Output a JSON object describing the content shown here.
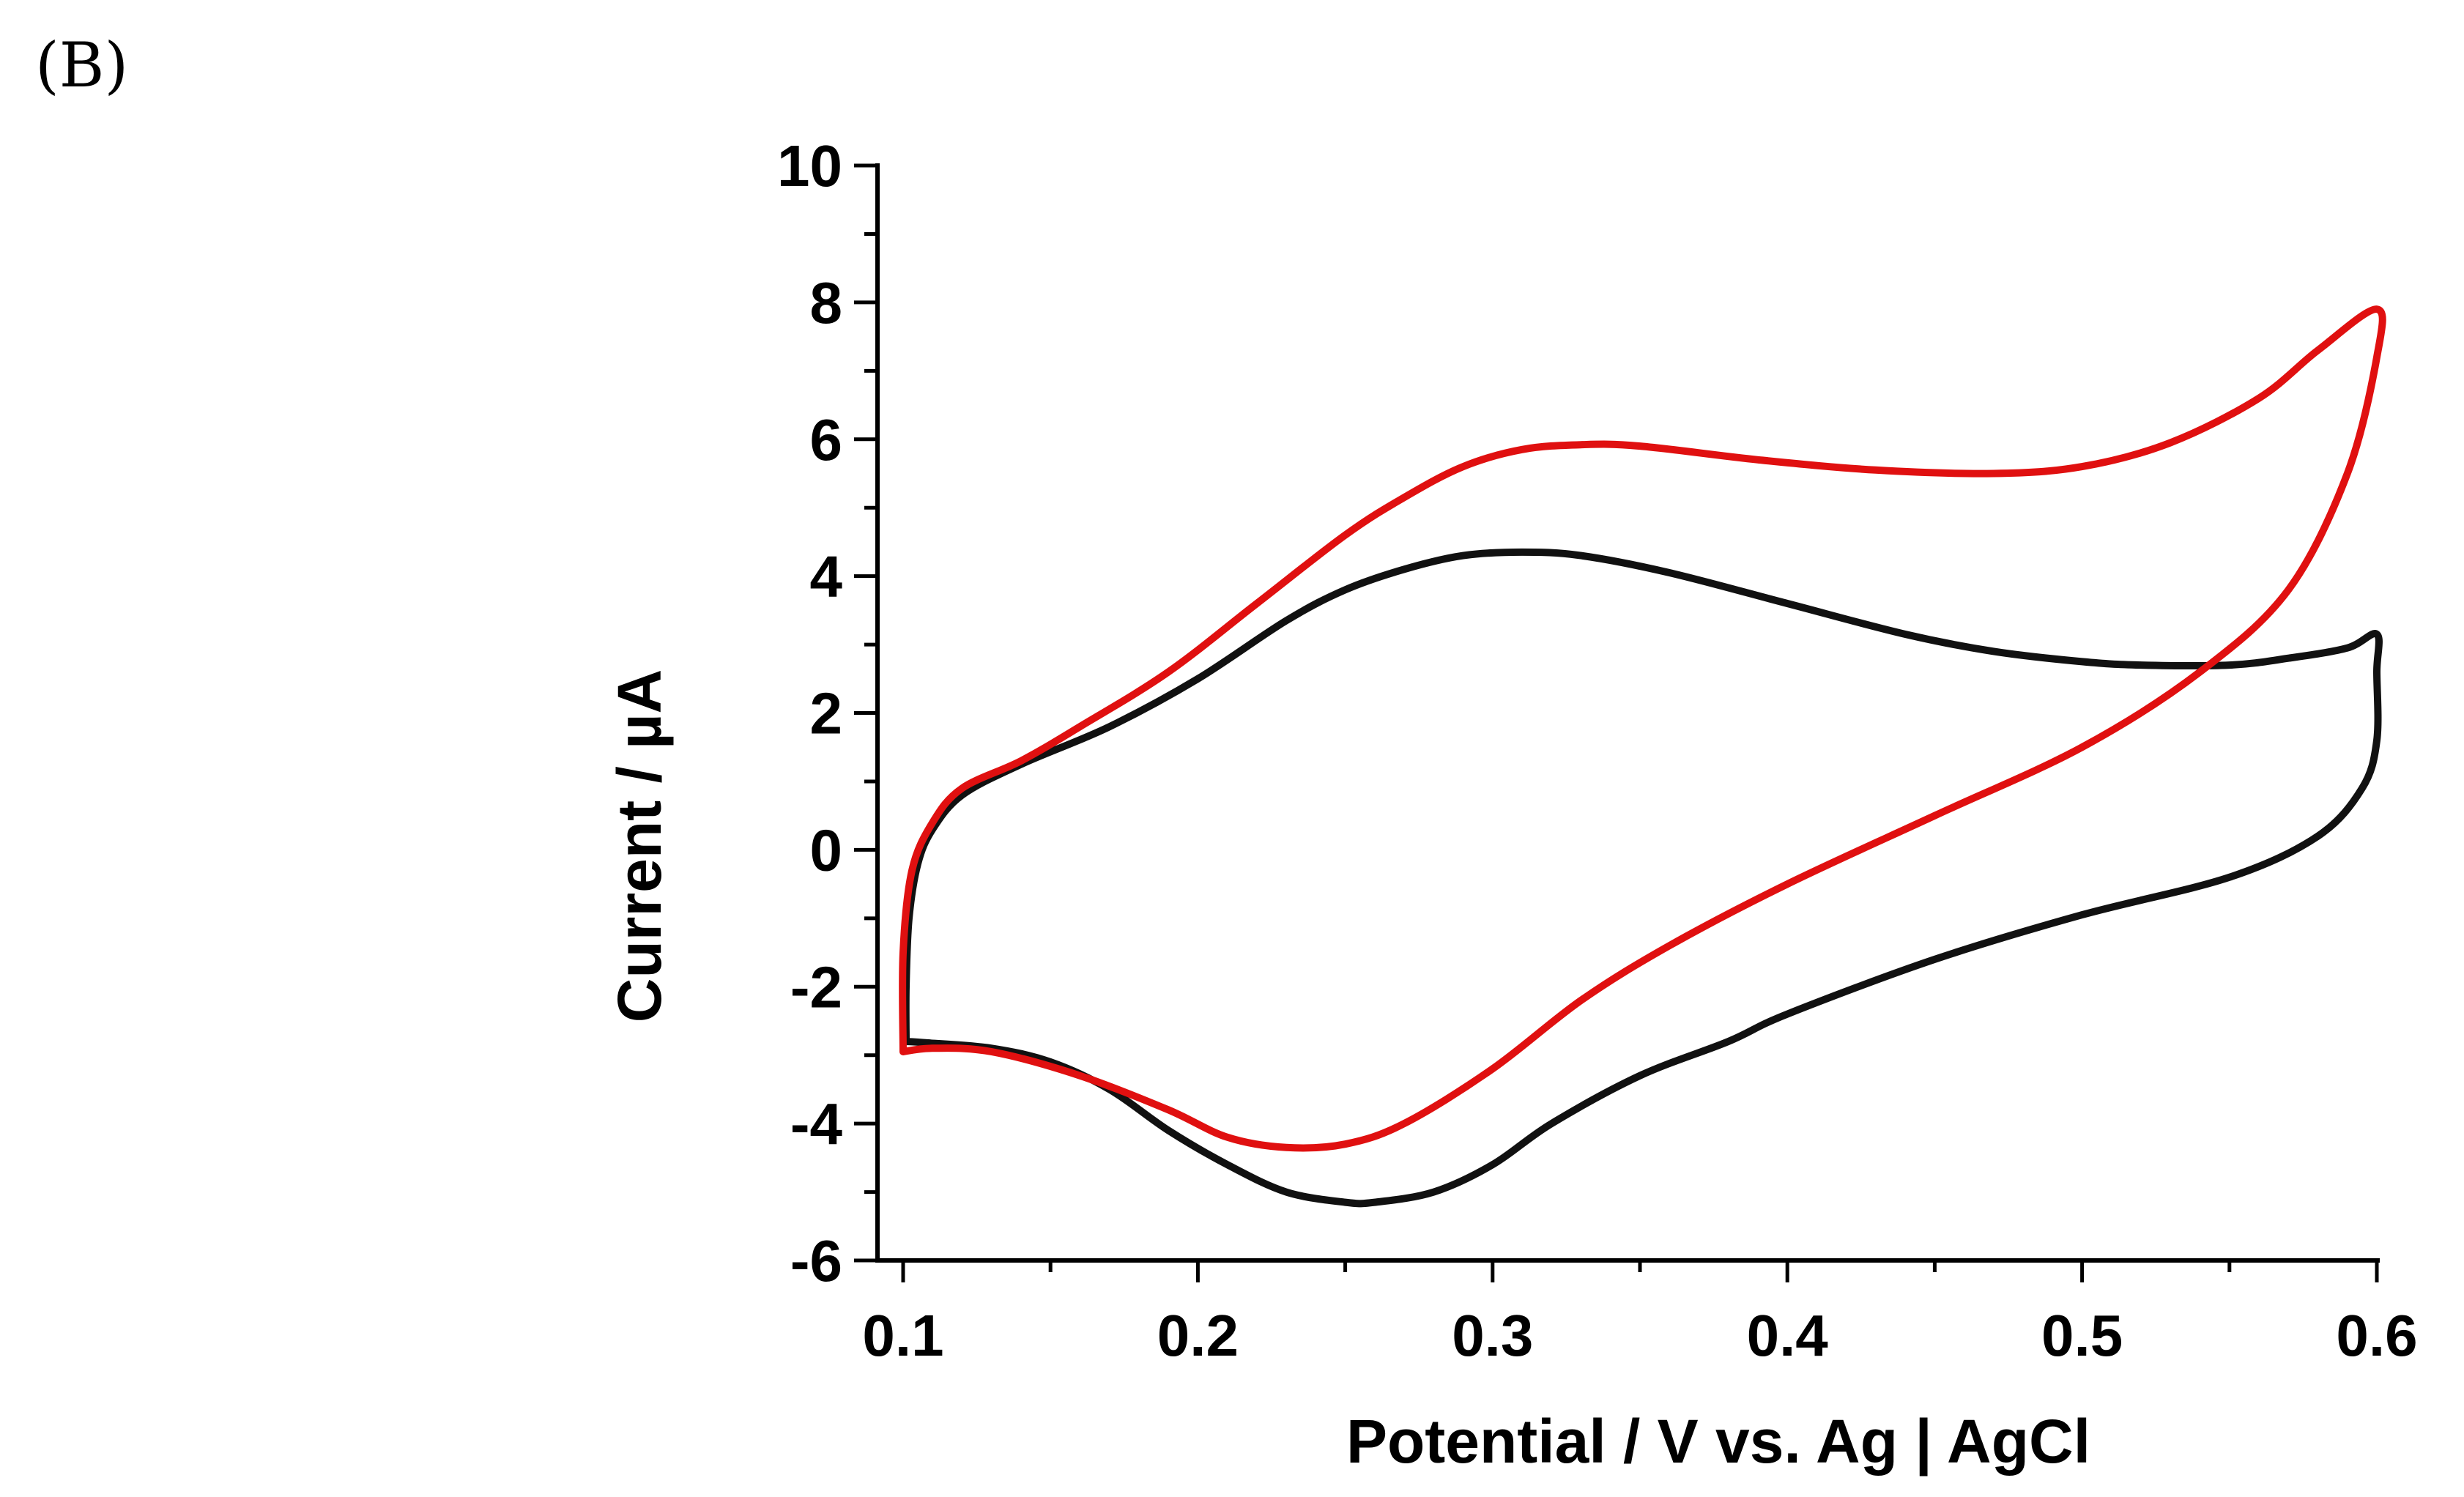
{
  "panel_label": "(B)",
  "chart_data": {
    "type": "line",
    "title": "",
    "xlabel": "Potential / V vs. Ag | AgCl",
    "ylabel": "Current / µA",
    "xlim": [
      0.1,
      0.6
    ],
    "ylim": [
      -6,
      10
    ],
    "x_ticks": [
      0.1,
      0.2,
      0.3,
      0.4,
      0.5,
      0.6
    ],
    "x_tick_labels": [
      "0.1",
      "0.2",
      "0.3",
      "0.4",
      "0.5",
      "0.6"
    ],
    "y_ticks": [
      -6,
      -4,
      -2,
      0,
      2,
      4,
      6,
      8,
      10
    ],
    "y_tick_labels": [
      "-6",
      "-4",
      "-2",
      "0",
      "2",
      "4",
      "6",
      "8",
      "10"
    ],
    "y_minor_step": 1,
    "grid": false,
    "legend": "none",
    "series": [
      {
        "name": "black curve",
        "color": "#111111",
        "points": [
          [
            0.101,
            -2.8
          ],
          [
            0.108,
            -2.82
          ],
          [
            0.13,
            -2.9
          ],
          [
            0.15,
            -3.1
          ],
          [
            0.17,
            -3.5
          ],
          [
            0.19,
            -4.1
          ],
          [
            0.21,
            -4.6
          ],
          [
            0.23,
            -5.0
          ],
          [
            0.25,
            -5.15
          ],
          [
            0.26,
            -5.15
          ],
          [
            0.28,
            -5.0
          ],
          [
            0.3,
            -4.6
          ],
          [
            0.32,
            -4.0
          ],
          [
            0.35,
            -3.3
          ],
          [
            0.38,
            -2.8
          ],
          [
            0.4,
            -2.4
          ],
          [
            0.45,
            -1.6
          ],
          [
            0.5,
            -0.95
          ],
          [
            0.55,
            -0.4
          ],
          [
            0.58,
            0.2
          ],
          [
            0.595,
            0.9
          ],
          [
            0.6,
            1.6
          ],
          [
            0.6,
            2.6
          ],
          [
            0.6,
            3.15
          ],
          [
            0.59,
            2.95
          ],
          [
            0.57,
            2.8
          ],
          [
            0.55,
            2.7
          ],
          [
            0.52,
            2.7
          ],
          [
            0.5,
            2.75
          ],
          [
            0.47,
            2.9
          ],
          [
            0.44,
            3.15
          ],
          [
            0.4,
            3.6
          ],
          [
            0.36,
            4.05
          ],
          [
            0.33,
            4.3
          ],
          [
            0.31,
            4.35
          ],
          [
            0.29,
            4.3
          ],
          [
            0.27,
            4.1
          ],
          [
            0.25,
            3.8
          ],
          [
            0.23,
            3.35
          ],
          [
            0.2,
            2.5
          ],
          [
            0.17,
            1.8
          ],
          [
            0.14,
            1.25
          ],
          [
            0.12,
            0.8
          ],
          [
            0.11,
            0.3
          ],
          [
            0.105,
            -0.2
          ],
          [
            0.102,
            -1.0
          ],
          [
            0.101,
            -2.0
          ],
          [
            0.101,
            -2.8
          ]
        ]
      },
      {
        "name": "red curve",
        "color": "#e01010",
        "points": [
          [
            0.1,
            -2.95
          ],
          [
            0.11,
            -2.9
          ],
          [
            0.13,
            -2.95
          ],
          [
            0.16,
            -3.3
          ],
          [
            0.19,
            -3.8
          ],
          [
            0.21,
            -4.2
          ],
          [
            0.23,
            -4.35
          ],
          [
            0.25,
            -4.3
          ],
          [
            0.27,
            -4.0
          ],
          [
            0.3,
            -3.2
          ],
          [
            0.33,
            -2.2
          ],
          [
            0.36,
            -1.4
          ],
          [
            0.4,
            -0.5
          ],
          [
            0.45,
            0.5
          ],
          [
            0.5,
            1.5
          ],
          [
            0.54,
            2.6
          ],
          [
            0.57,
            3.8
          ],
          [
            0.59,
            5.5
          ],
          [
            0.6,
            7.2
          ],
          [
            0.6,
            7.9
          ],
          [
            0.58,
            7.3
          ],
          [
            0.56,
            6.6
          ],
          [
            0.53,
            5.95
          ],
          [
            0.5,
            5.6
          ],
          [
            0.47,
            5.5
          ],
          [
            0.43,
            5.55
          ],
          [
            0.39,
            5.7
          ],
          [
            0.35,
            5.9
          ],
          [
            0.33,
            5.92
          ],
          [
            0.31,
            5.85
          ],
          [
            0.29,
            5.6
          ],
          [
            0.27,
            5.15
          ],
          [
            0.25,
            4.6
          ],
          [
            0.22,
            3.6
          ],
          [
            0.19,
            2.6
          ],
          [
            0.16,
            1.8
          ],
          [
            0.14,
            1.3
          ],
          [
            0.12,
            0.9
          ],
          [
            0.11,
            0.4
          ],
          [
            0.103,
            -0.3
          ],
          [
            0.1,
            -1.5
          ],
          [
            0.1,
            -2.95
          ]
        ]
      }
    ]
  }
}
